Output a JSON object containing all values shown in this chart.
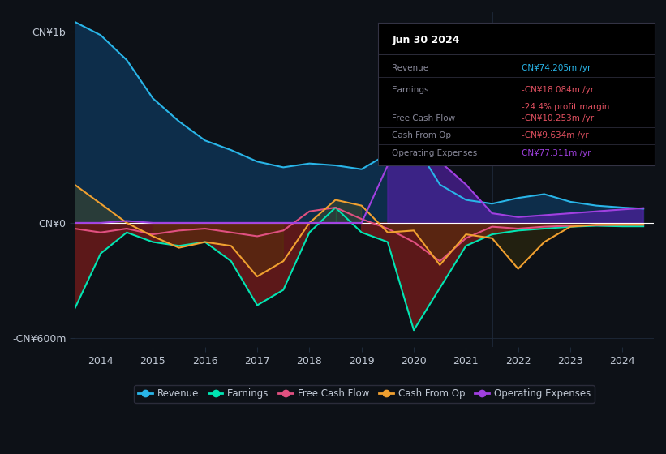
{
  "background_color": "#0d1117",
  "plot_bg_color": "#0d1117",
  "grid_color": "#1e2a3a",
  "text_color": "#c0c8d4",
  "title_color": "#ffffff",
  "years": [
    2013.5,
    2014,
    2014.5,
    2015,
    2015.5,
    2016,
    2016.5,
    2017,
    2017.5,
    2018,
    2018.5,
    2019,
    2019.5,
    2020,
    2020.5,
    2021,
    2021.5,
    2022,
    2022.5,
    2023,
    2023.5,
    2024,
    2024.4
  ],
  "revenue": [
    1050,
    980,
    850,
    650,
    530,
    430,
    380,
    320,
    290,
    310,
    300,
    280,
    360,
    420,
    200,
    120,
    100,
    130,
    150,
    110,
    90,
    80,
    74
  ],
  "earnings": [
    -450,
    -160,
    -50,
    -100,
    -120,
    -100,
    -200,
    -430,
    -350,
    -50,
    80,
    -50,
    -100,
    -560,
    -340,
    -120,
    -60,
    -40,
    -30,
    -20,
    -15,
    -18,
    -18
  ],
  "free_cash_flow": [
    -30,
    -50,
    -30,
    -60,
    -40,
    -30,
    -50,
    -70,
    -40,
    60,
    80,
    20,
    -30,
    -100,
    -200,
    -80,
    -20,
    -30,
    -20,
    -15,
    -12,
    -10,
    -10
  ],
  "cash_from_op": [
    200,
    100,
    0,
    -70,
    -130,
    -100,
    -120,
    -280,
    -200,
    0,
    120,
    90,
    -50,
    -40,
    -220,
    -60,
    -80,
    -240,
    -100,
    -20,
    -10,
    -10,
    -9.6
  ],
  "operating_expenses": [
    0,
    0,
    10,
    0,
    0,
    0,
    0,
    0,
    0,
    0,
    0,
    0,
    300,
    350,
    320,
    200,
    50,
    30,
    40,
    50,
    60,
    70,
    77
  ],
  "ylim": [
    -650,
    1100
  ],
  "yticks": [
    -600,
    0,
    1000
  ],
  "ytick_labels": [
    "-CN¥600m",
    "CN¥0",
    "CN¥1b"
  ],
  "xticks": [
    2014,
    2015,
    2016,
    2017,
    2018,
    2019,
    2020,
    2021,
    2022,
    2023,
    2024
  ],
  "xlim": [
    2013.5,
    2024.6
  ],
  "revenue_color": "#29b5e8",
  "revenue_fill": "#0d2d4a",
  "earnings_color": "#00e5b3",
  "earnings_fill_pos": "#006655",
  "earnings_fill_neg": "#6b1a1a",
  "free_cash_flow_color": "#e05080",
  "cash_from_op_color": "#f0a030",
  "operating_expenses_color": "#a040e0",
  "operating_expenses_fill_pos": "#5020a0",
  "info_box": {
    "bg": "#000000",
    "border": "#333344",
    "title": "Jun 30 2024",
    "title_color": "#ffffff",
    "rows": [
      {
        "label": "Revenue",
        "value": "CN¥74.205m /yr",
        "value_color": "#29b5e8",
        "extra": null,
        "extra_color": null
      },
      {
        "label": "Earnings",
        "value": "-CN¥18.084m /yr",
        "value_color": "#e05060",
        "extra": "-24.4% profit margin",
        "extra_color": "#e05060"
      },
      {
        "label": "Free Cash Flow",
        "value": "-CN¥10.253m /yr",
        "value_color": "#e05060",
        "extra": null,
        "extra_color": null
      },
      {
        "label": "Cash From Op",
        "value": "-CN¥9.634m /yr",
        "value_color": "#e05060",
        "extra": null,
        "extra_color": null
      },
      {
        "label": "Operating Expenses",
        "value": "CN¥77.311m /yr",
        "value_color": "#a040e0",
        "extra": null,
        "extra_color": null
      }
    ],
    "label_color": "#888899",
    "sep_color": "#333344"
  },
  "legend": [
    {
      "label": "Revenue",
      "color": "#29b5e8"
    },
    {
      "label": "Earnings",
      "color": "#00e5b3"
    },
    {
      "label": "Free Cash Flow",
      "color": "#e05080"
    },
    {
      "label": "Cash From Op",
      "color": "#f0a030"
    },
    {
      "label": "Operating Expenses",
      "color": "#a040e0"
    }
  ]
}
